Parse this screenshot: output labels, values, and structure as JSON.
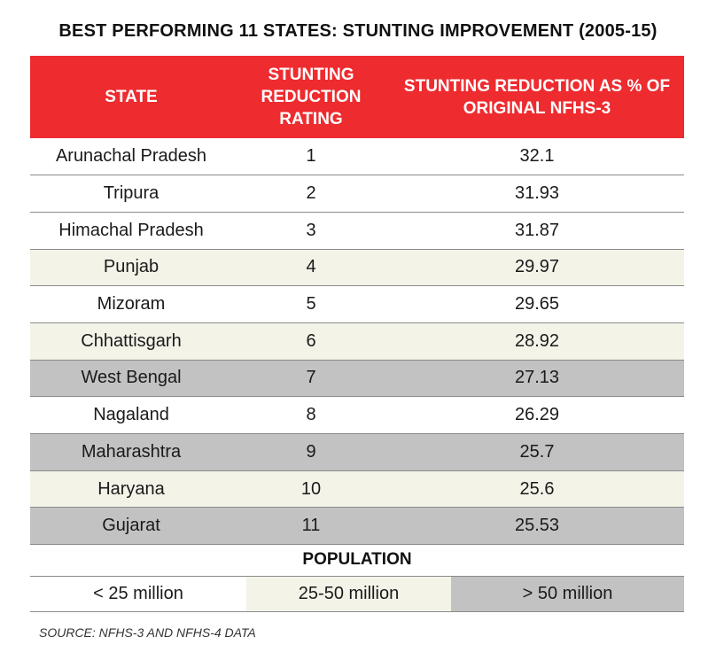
{
  "chart_data": {
    "type": "table",
    "title": "BEST PERFORMING 11 STATES: STUNTING IMPROVEMENT (2005-15)",
    "columns": [
      "STATE",
      "STUNTING REDUCTION RATING",
      "STUNTING REDUCTION AS % OF ORIGINAL NFHS-3"
    ],
    "rows": [
      {
        "state": "Arunachal Pradesh",
        "rating": "1",
        "reduction": "32.1",
        "population_band": "< 25 million"
      },
      {
        "state": "Tripura",
        "rating": "2",
        "reduction": "31.93",
        "population_band": "< 25 million"
      },
      {
        "state": "Himachal Pradesh",
        "rating": "3",
        "reduction": "31.87",
        "population_band": "< 25 million"
      },
      {
        "state": "Punjab",
        "rating": "4",
        "reduction": "29.97",
        "population_band": "25-50 million"
      },
      {
        "state": "Mizoram",
        "rating": "5",
        "reduction": "29.65",
        "population_band": "< 25 million"
      },
      {
        "state": "Chhattisgarh",
        "rating": "6",
        "reduction": "28.92",
        "population_band": "25-50 million"
      },
      {
        "state": "West Bengal",
        "rating": "7",
        "reduction": "27.13",
        "population_band": "> 50 million"
      },
      {
        "state": "Nagaland",
        "rating": "8",
        "reduction": "26.29",
        "population_band": "< 25 million"
      },
      {
        "state": "Maharashtra",
        "rating": "9",
        "reduction": "25.7",
        "population_band": "> 50 million"
      },
      {
        "state": "Haryana",
        "rating": "10",
        "reduction": "25.6",
        "population_band": "25-50 million"
      },
      {
        "state": "Gujarat",
        "rating": "11",
        "reduction": "25.53",
        "population_band": "> 50 million"
      }
    ],
    "legend": {
      "title": "POPULATION",
      "items": [
        {
          "label": "< 25 million",
          "color": "#ffffff"
        },
        {
          "label": "25-50 million",
          "color": "#f4f3e8"
        },
        {
          "label": "> 50 million",
          "color": "#c2c2c2"
        }
      ]
    },
    "header_color": "#ee2b2f",
    "source": "SOURCE: NFHS-3 AND NFHS-4 DATA"
  }
}
